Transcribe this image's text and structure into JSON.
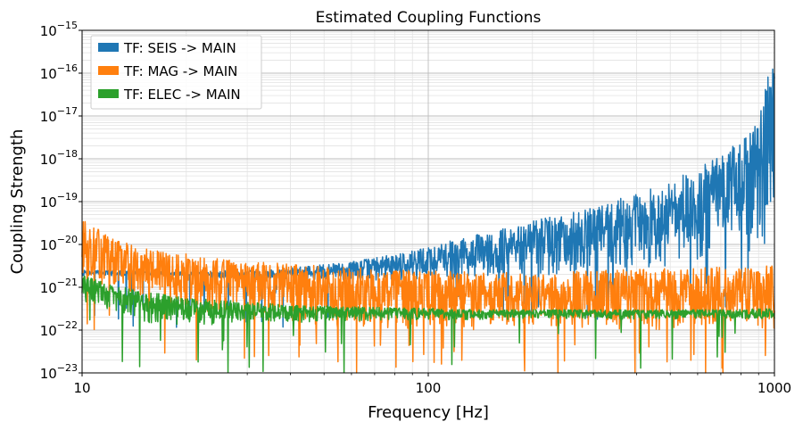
{
  "chart_data": {
    "type": "line",
    "title": "Estimated Coupling Functions",
    "xlabel": "Frequency [Hz]",
    "ylabel": "Coupling Strength",
    "xscale": "log",
    "yscale": "log",
    "xlim": [
      10,
      1000
    ],
    "ylim": [
      1e-23,
      1e-15
    ],
    "x_ticks": [
      {
        "value": 10,
        "label": "10"
      },
      {
        "value": 100,
        "label": "100"
      },
      {
        "value": 1000,
        "label": "1000"
      }
    ],
    "y_ticks": [
      {
        "exp": -23,
        "base": "10",
        "power": "−23"
      },
      {
        "exp": -22,
        "base": "10",
        "power": "−22"
      },
      {
        "exp": -21,
        "base": "10",
        "power": "−21"
      },
      {
        "exp": -20,
        "base": "10",
        "power": "−20"
      },
      {
        "exp": -19,
        "base": "10",
        "power": "−19"
      },
      {
        "exp": -18,
        "base": "10",
        "power": "−18"
      },
      {
        "exp": -17,
        "base": "10",
        "power": "−17"
      },
      {
        "exp": -16,
        "base": "10",
        "power": "−16"
      },
      {
        "exp": -15,
        "base": "10",
        "power": "−15"
      }
    ],
    "grid": true,
    "legend_position": "top-left",
    "series": [
      {
        "name": "TF: SEIS -> MAIN",
        "color": "#1f77b4",
        "x": [
          10,
          15,
          20,
          30,
          40,
          60,
          80,
          100,
          150,
          200,
          300,
          400,
          500,
          600,
          700,
          800,
          900,
          1000
        ],
        "upper": [
          2.5e-21,
          2.4e-21,
          2.3e-21,
          2.5e-21,
          2.8e-21,
          4e-21,
          6e-21,
          9e-21,
          2e-20,
          3.5e-20,
          8e-20,
          1.5e-19,
          3e-19,
          6e-19,
          1.2e-18,
          3e-18,
          1e-17,
          4e-16
        ],
        "lower": [
          1.8e-21,
          1.9e-21,
          1.8e-21,
          1.5e-21,
          1.5e-21,
          1.4e-21,
          1.5e-21,
          1.5e-21,
          1.6e-21,
          1.8e-21,
          2e-21,
          2.5e-21,
          3e-21,
          4e-21,
          5e-21,
          6e-21,
          8e-21,
          1e-20
        ]
      },
      {
        "name": "TF: MAG -> MAIN",
        "color": "#ff7f0e",
        "x": [
          10,
          12,
          15,
          20,
          30,
          40,
          60,
          100,
          150,
          200,
          300,
          500,
          700,
          1000
        ],
        "upper": [
          4e-20,
          1.5e-20,
          8e-21,
          6e-21,
          4e-21,
          3.5e-21,
          3e-21,
          2.5e-21,
          2.2e-21,
          2.2e-21,
          2.5e-21,
          2.8e-21,
          3e-21,
          3.2e-21
        ],
        "lower": [
          1.5e-21,
          1e-21,
          6e-22,
          3e-22,
          2e-22,
          1.5e-22,
          1e-22,
          1e-22,
          1e-22,
          1e-22,
          1e-22,
          1e-22,
          1e-22,
          1e-22
        ]
      },
      {
        "name": "TF: ELEC -> MAIN",
        "color": "#2ca02c",
        "x": [
          10,
          12,
          15,
          20,
          30,
          40,
          60,
          100,
          150,
          200,
          300,
          500,
          700,
          1000
        ],
        "upper": [
          2e-21,
          1.2e-21,
          8e-22,
          6e-22,
          4.5e-22,
          4e-22,
          3.5e-22,
          3.2e-22,
          3e-22,
          3e-22,
          3e-22,
          3e-22,
          3e-22,
          3.2e-22
        ],
        "lower": [
          4e-22,
          3e-22,
          1.5e-22,
          1.2e-22,
          1.5e-22,
          1.5e-22,
          1.6e-22,
          1.7e-22,
          1.7e-22,
          1.8e-22,
          1.8e-22,
          1.8e-22,
          1.8e-22,
          1.8e-22
        ]
      }
    ]
  }
}
